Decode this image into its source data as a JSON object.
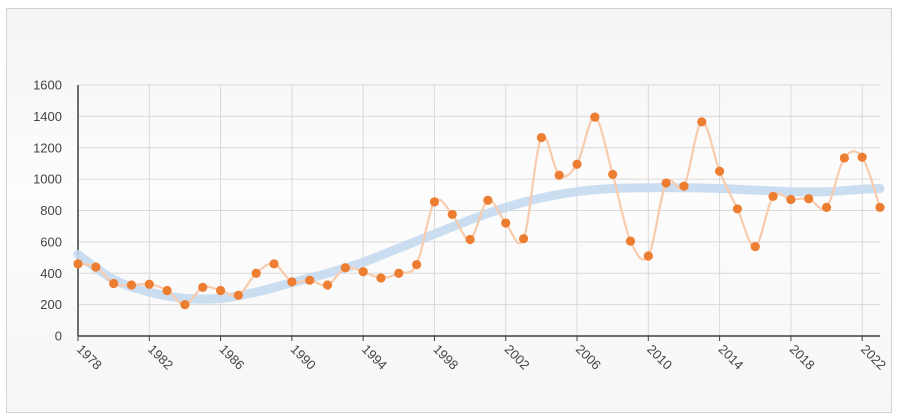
{
  "chart_data": {
    "type": "scatter",
    "title": "",
    "xlabel": "",
    "ylabel": "",
    "xlim": [
      1978,
      2023
    ],
    "ylim": [
      0,
      1600
    ],
    "x_ticks": [
      1978,
      1982,
      1986,
      1990,
      1994,
      1998,
      2002,
      2006,
      2010,
      2014,
      2018,
      2022
    ],
    "x_tick_labels": [
      "1978",
      "1982",
      "1986",
      "1990",
      "1994",
      "1998",
      "2002",
      "2006",
      "2010",
      "2014",
      "2018",
      "2022"
    ],
    "y_ticks": [
      0,
      200,
      400,
      600,
      800,
      1000,
      1200,
      1400,
      1600
    ],
    "y_tick_labels": [
      "0",
      "200",
      "400",
      "600",
      "800",
      "1000",
      "1200",
      "1400",
      "1600"
    ],
    "grid": true,
    "legend": "none",
    "series": [
      {
        "type": "scatter-smooth-line",
        "color": "#ED7D31",
        "line_color": "#F8CBAD",
        "x": [
          1978,
          1979,
          1980,
          1981,
          1982,
          1983,
          1984,
          1985,
          1986,
          1987,
          1988,
          1989,
          1990,
          1991,
          1992,
          1993,
          1994,
          1995,
          1996,
          1997,
          1998,
          1999,
          2000,
          2001,
          2002,
          2003,
          2004,
          2005,
          2006,
          2007,
          2008,
          2009,
          2010,
          2011,
          2012,
          2013,
          2014,
          2015,
          2016,
          2017,
          2018,
          2019,
          2020,
          2021,
          2022,
          2023
        ],
        "y": [
          460,
          440,
          335,
          325,
          330,
          290,
          200,
          310,
          290,
          260,
          400,
          460,
          345,
          355,
          325,
          435,
          410,
          370,
          400,
          455,
          855,
          775,
          615,
          865,
          720,
          620,
          1265,
          1025,
          1095,
          1395,
          1030,
          605,
          510,
          975,
          955,
          1365,
          1050,
          810,
          570,
          890,
          870,
          875,
          820,
          1135,
          1140,
          820
        ]
      },
      {
        "type": "trend-line",
        "color": "#C5D9F0",
        "x": [
          1978,
          1980,
          1982,
          1984,
          1986,
          1988,
          1990,
          1992,
          1994,
          1996,
          1998,
          2000,
          2002,
          2004,
          2006,
          2008,
          2010,
          2012,
          2014,
          2016,
          2018,
          2020,
          2022,
          2023
        ],
        "y": [
          520,
          360,
          280,
          240,
          240,
          280,
          340,
          400,
          470,
          560,
          650,
          740,
          820,
          880,
          920,
          940,
          945,
          945,
          940,
          930,
          920,
          920,
          935,
          940
        ]
      }
    ]
  }
}
